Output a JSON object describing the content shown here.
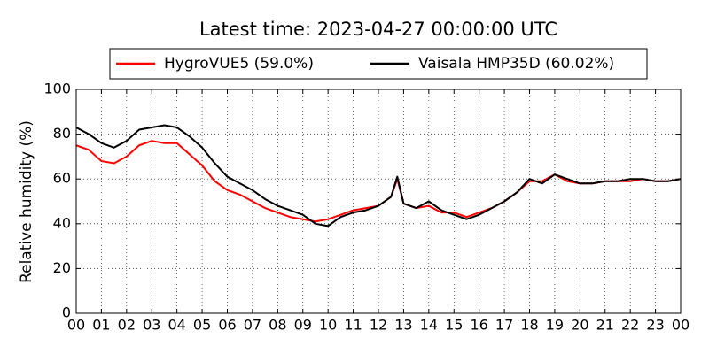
{
  "chart_data": {
    "type": "line",
    "title": "Latest time: 2023-04-27 00:00:00 UTC",
    "ylabel": "Relative humidity (%)",
    "x": [
      0,
      0.5,
      1,
      1.5,
      2,
      2.5,
      3,
      3.5,
      4,
      4.5,
      5,
      5.5,
      6,
      6.5,
      7,
      7.5,
      8,
      8.5,
      9,
      9.5,
      10,
      10.5,
      11,
      11.5,
      12,
      12.5,
      12.75,
      13,
      13.5,
      14,
      14.5,
      15,
      15.5,
      16,
      16.5,
      17,
      17.5,
      18,
      18.5,
      19,
      19.5,
      20,
      20.5,
      21,
      21.5,
      22,
      22.5,
      23,
      23.5,
      24
    ],
    "series": [
      {
        "name": "HygroVUE5 (59.0%)",
        "color": "#ff0000",
        "values": [
          75,
          73,
          68,
          67,
          70,
          75,
          77,
          76,
          76,
          71,
          66,
          59,
          55,
          53,
          50,
          47,
          45,
          43,
          42,
          41,
          42,
          44,
          46,
          47,
          48,
          52,
          60,
          49,
          47,
          48,
          45,
          45,
          43,
          45,
          47,
          50,
          54,
          59,
          59,
          62,
          59,
          58,
          58,
          59,
          59,
          59,
          60,
          59,
          59,
          60
        ]
      },
      {
        "name": "Vaisala HMP35D (60.02%)",
        "color": "#000000",
        "values": [
          83,
          80,
          76,
          74,
          77,
          82,
          83,
          84,
          83,
          79,
          74,
          67,
          61,
          58,
          55,
          51,
          48,
          46,
          44,
          40,
          39,
          43,
          45,
          46,
          48,
          52,
          61,
          49,
          47,
          50,
          46,
          44,
          42,
          44,
          47,
          50,
          54,
          60,
          58,
          62,
          60,
          58,
          58,
          59,
          59,
          60,
          60,
          59,
          59,
          60
        ]
      }
    ],
    "xlim": [
      0,
      24
    ],
    "xticks": [
      {
        "value": 0,
        "label": "00"
      },
      {
        "value": 1,
        "label": "01"
      },
      {
        "value": 2,
        "label": "02"
      },
      {
        "value": 3,
        "label": "03"
      },
      {
        "value": 4,
        "label": "04"
      },
      {
        "value": 5,
        "label": "05"
      },
      {
        "value": 6,
        "label": "06"
      },
      {
        "value": 7,
        "label": "07"
      },
      {
        "value": 8,
        "label": "08"
      },
      {
        "value": 9,
        "label": "09"
      },
      {
        "value": 10,
        "label": "10"
      },
      {
        "value": 11,
        "label": "11"
      },
      {
        "value": 12,
        "label": "12"
      },
      {
        "value": 13,
        "label": "13"
      },
      {
        "value": 14,
        "label": "14"
      },
      {
        "value": 15,
        "label": "15"
      },
      {
        "value": 16,
        "label": "16"
      },
      {
        "value": 17,
        "label": "17"
      },
      {
        "value": 18,
        "label": "18"
      },
      {
        "value": 19,
        "label": "19"
      },
      {
        "value": 20,
        "label": "20"
      },
      {
        "value": 21,
        "label": "21"
      },
      {
        "value": 22,
        "label": "22"
      },
      {
        "value": 23,
        "label": "23"
      },
      {
        "value": 24,
        "label": "00"
      }
    ],
    "ylim": [
      0,
      100
    ],
    "yticks": [
      0,
      20,
      40,
      60,
      80,
      100
    ],
    "grid": true,
    "legend": "top"
  }
}
